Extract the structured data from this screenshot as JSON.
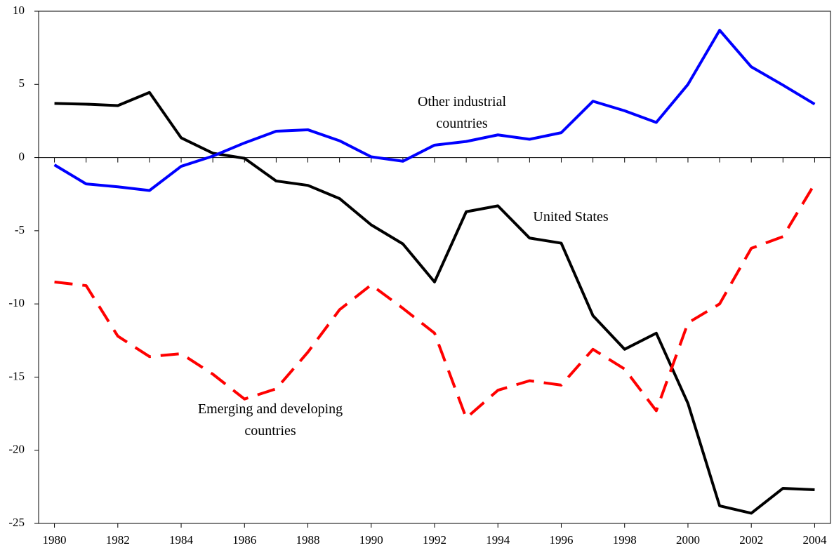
{
  "chart_data": {
    "type": "line",
    "x": [
      1980,
      1981,
      1982,
      1983,
      1984,
      1985,
      1986,
      1987,
      1988,
      1989,
      1990,
      1991,
      1992,
      1993,
      1994,
      1995,
      1996,
      1997,
      1998,
      1999,
      2000,
      2001,
      2002,
      2003,
      2004
    ],
    "xlim": [
      1979.5,
      2004.5
    ],
    "xticks": [
      1980,
      1982,
      1984,
      1986,
      1988,
      1990,
      1992,
      1994,
      1996,
      1998,
      2000,
      2002,
      2004
    ],
    "ylim": [
      -25,
      10
    ],
    "yticks": [
      -25,
      -20,
      -15,
      -10,
      -5,
      0,
      5,
      10
    ],
    "grid": false,
    "series": [
      {
        "name": "United States",
        "color": "#000000",
        "dash": "solid",
        "values": [
          3.7,
          3.65,
          3.55,
          4.45,
          1.35,
          0.3,
          -0.05,
          -1.6,
          -1.9,
          -2.8,
          -4.6,
          -5.9,
          -8.5,
          -3.7,
          -3.3,
          -5.5,
          -5.85,
          -10.8,
          -13.1,
          -12.0,
          -16.8,
          -23.8,
          -24.3,
          -22.6,
          -22.7
        ]
      },
      {
        "name": "Other industrial countries",
        "color": "#0000ff",
        "dash": "solid",
        "values": [
          -0.5,
          -1.8,
          -2.0,
          -2.25,
          -0.6,
          0.1,
          1.0,
          1.8,
          1.9,
          1.15,
          0.05,
          -0.25,
          0.85,
          1.1,
          1.55,
          1.25,
          1.7,
          3.85,
          3.2,
          2.4,
          5.0,
          8.7,
          6.2,
          4.95,
          3.65
        ]
      },
      {
        "name": "Emerging and developing countries",
        "color": "#ff0000",
        "dash": "dashed",
        "values": [
          -8.5,
          -8.75,
          -12.2,
          -13.6,
          -13.4,
          -14.8,
          -16.5,
          -15.8,
          -13.3,
          -10.4,
          -8.7,
          -10.3,
          -12.0,
          -17.8,
          -15.9,
          -15.25,
          -15.55,
          -13.1,
          -14.45,
          -17.3,
          -11.3,
          -10.0,
          -6.2,
          -5.4,
          -1.8
        ]
      }
    ]
  }
}
